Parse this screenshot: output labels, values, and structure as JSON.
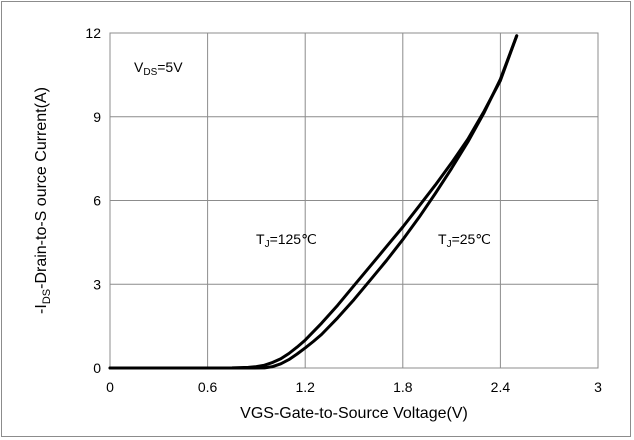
{
  "chart_data": {
    "type": "line",
    "title": "",
    "xlabel": "VGS-Gate-to-Source Voltage(V)",
    "ylabel": {
      "pre": "-I",
      "sub": "DS",
      "post": "-Drain-to-S ource Current(A)"
    },
    "xlim": [
      0,
      3
    ],
    "ylim": [
      0,
      12
    ],
    "xticks": [
      "0",
      "0.6",
      "1.2",
      "1.8",
      "2.4",
      "3"
    ],
    "xtick_values": [
      0,
      0.6,
      1.2,
      1.8,
      2.4,
      3
    ],
    "yticks": [
      "0",
      "3",
      "6",
      "9",
      "12"
    ],
    "ytick_values": [
      0,
      3,
      6,
      9,
      12
    ],
    "grid": true,
    "colors": {
      "line": "#000000",
      "grid": "#8c8c8c",
      "frame": "#8c8c8c"
    },
    "annotations": {
      "vds": {
        "pre": "V",
        "sub": "DS",
        "post": "=5V"
      },
      "tj125": {
        "pre": "T",
        "sub": "J",
        "post": "=125℃"
      },
      "tj25": {
        "pre": "T",
        "sub": "J",
        "post": "=25℃"
      }
    },
    "series": [
      {
        "x": [
          0,
          0.3,
          0.6,
          0.75,
          0.85,
          0.9,
          0.95,
          1.0,
          1.05,
          1.1,
          1.15,
          1.2,
          1.3,
          1.4,
          1.5,
          1.6,
          1.7,
          1.8,
          1.9,
          2.0,
          2.1,
          2.2,
          2.3,
          2.4,
          2.5
        ],
        "values": [
          0,
          0,
          0,
          0.005,
          0.02,
          0.05,
          0.1,
          0.2,
          0.33,
          0.52,
          0.75,
          1.0,
          1.6,
          2.25,
          2.95,
          3.65,
          4.35,
          5.05,
          5.8,
          6.55,
          7.35,
          8.2,
          9.2,
          10.3,
          11.9
        ]
      },
      {
        "x": [
          0,
          0.3,
          0.6,
          0.85,
          0.95,
          1.0,
          1.05,
          1.1,
          1.15,
          1.2,
          1.25,
          1.3,
          1.4,
          1.5,
          1.6,
          1.7,
          1.8,
          1.9,
          2.0,
          2.1,
          2.2,
          2.3,
          2.4,
          2.5
        ],
        "values": [
          0,
          0,
          0,
          0,
          0.005,
          0.05,
          0.15,
          0.3,
          0.5,
          0.72,
          0.95,
          1.2,
          1.8,
          2.45,
          3.15,
          3.85,
          4.6,
          5.4,
          6.25,
          7.15,
          8.1,
          9.15,
          10.35,
          11.9
        ]
      }
    ]
  }
}
